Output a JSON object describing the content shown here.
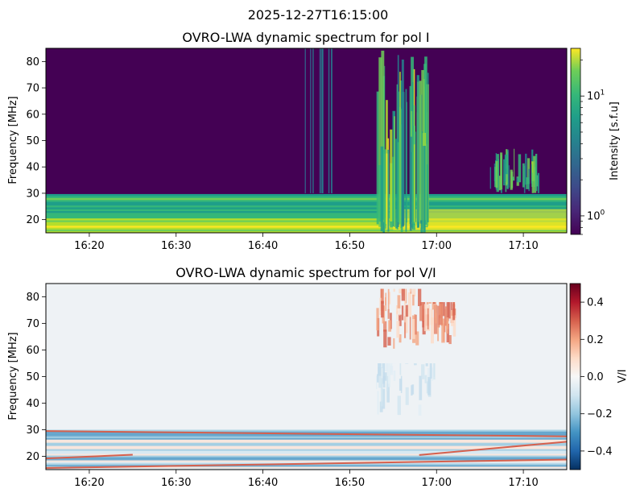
{
  "figure": {
    "suptitle": "2025-12-27T16:15:00"
  },
  "chart_data": [
    {
      "type": "heatmap",
      "title": "OVRO-LWA dynamic spectrum for pol I",
      "xlabel": "",
      "ylabel": "Frequency [MHz]",
      "x_ticks": [
        "16:20",
        "16:30",
        "16:40",
        "16:50",
        "17:00",
        "17:10"
      ],
      "x_range": [
        "16:15",
        "17:15"
      ],
      "y_ticks": [
        20,
        30,
        40,
        50,
        60,
        70,
        80
      ],
      "ylim": [
        15,
        85
      ],
      "colormap": "viridis",
      "colorbar": {
        "label": "Intensity [s.f.u]",
        "scale": "log",
        "range": [
          0.7,
          25
        ],
        "tick_labels": [
          {
            "value": 1,
            "base": "10",
            "exp": "0"
          },
          {
            "value": 10,
            "base": "10",
            "exp": "1"
          }
        ]
      },
      "features": [
        {
          "kind": "band",
          "freq_range": [
            15,
            29
          ],
          "level": "bright"
        },
        {
          "kind": "burst",
          "time_range": [
            "16:53",
            "16:59"
          ],
          "freq_range": [
            15,
            85
          ],
          "level": "bright"
        },
        {
          "kind": "burst",
          "time_range": [
            "17:06",
            "17:12"
          ],
          "freq_range": [
            30,
            47
          ],
          "level": "moderate"
        }
      ]
    },
    {
      "type": "heatmap",
      "title": "OVRO-LWA dynamic spectrum for pol V/I",
      "xlabel": "",
      "ylabel": "Frequency [MHz]",
      "x_ticks": [
        "16:20",
        "16:30",
        "16:40",
        "16:50",
        "17:00",
        "17:10"
      ],
      "x_range": [
        "16:15",
        "17:15"
      ],
      "y_ticks": [
        20,
        30,
        40,
        50,
        60,
        70,
        80
      ],
      "ylim": [
        15,
        85
      ],
      "colormap": "RdBu_r",
      "colorbar": {
        "label": "V/I",
        "scale": "linear",
        "range": [
          -0.5,
          0.5
        ],
        "tick_labels": [
          {
            "value": 0.4,
            "text": "0.4"
          },
          {
            "value": 0.2,
            "text": "0.2"
          },
          {
            "value": 0.0,
            "text": "0.0"
          },
          {
            "value": -0.2,
            "text": "−0.2"
          },
          {
            "value": -0.4,
            "text": "−0.4"
          }
        ]
      },
      "features": [
        {
          "kind": "patch",
          "time_range": [
            "16:53",
            "16:58"
          ],
          "freq_range": [
            60,
            83
          ],
          "level": "positive"
        },
        {
          "kind": "patch",
          "time_range": [
            "16:58",
            "17:02"
          ],
          "freq_range": [
            62,
            78
          ],
          "level": "positive"
        },
        {
          "kind": "patch",
          "time_range": [
            "16:53",
            "17:00"
          ],
          "freq_range": [
            35,
            55
          ],
          "level": "negative"
        },
        {
          "kind": "band",
          "freq_range": [
            15,
            30
          ],
          "level": "mixed"
        }
      ]
    }
  ]
}
